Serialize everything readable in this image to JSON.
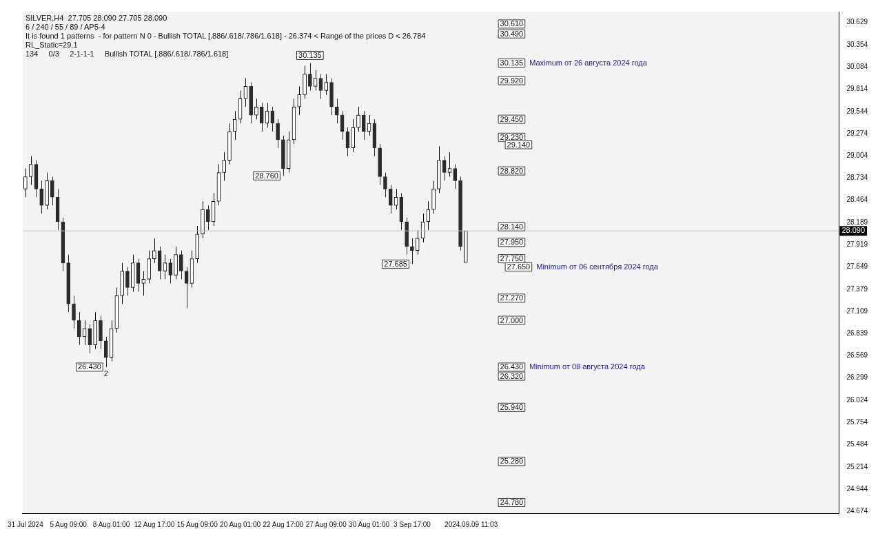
{
  "chart_data": {
    "type": "candlestick",
    "title": "SILVER,H4  27.705 28.090 27.705 28.090",
    "colors": [
      "#000000",
      "#000000",
      "#2b2b2b",
      "#2b2b2b",
      "#000000",
      "#2b2b2b",
      "#2b2b2b",
      "#2b2b2b",
      "#2b2b2b",
      "#2b2b2b",
      "#2b2b2b",
      "#000000",
      "#2b2b2b",
      "#000000",
      "#2b2b2b",
      "#2b2b2b",
      "#000000",
      "#000000",
      "#000000",
      "#2b2b2b",
      "#000000",
      "#2b2b2b",
      "#000000",
      "#000000",
      "#000000",
      "#2b2b2b",
      "#000000",
      "#2b2b2b",
      "#000000",
      "#2b2b2b",
      "#2b2b2b",
      "#000000",
      "#000000",
      "#000000",
      "#2b2b2b",
      "#000000",
      "#000000",
      "#000000",
      "#000000",
      "#000000",
      "#000000",
      "#000000",
      "#2b2b2b",
      "#000000",
      "#2b2b2b",
      "#000000",
      "#2b2b2b",
      "#2b2b2b",
      "#2b2b2b",
      "#000000",
      "#000000",
      "#000000",
      "#000000",
      "#2b2b2b",
      "#000000",
      "#2b2b2b",
      "#000000",
      "#2b2b2b",
      "#2b2b2b",
      "#2b2b2b",
      "#2b2b2b",
      "#000000",
      "#000000",
      "#2b2b2b",
      "#000000",
      "#2b2b2b",
      "#2b2b2b",
      "#2b2b2b",
      "#2b2b2b",
      "#000000",
      "#2b2b2b",
      "#2b2b2b",
      "#2b2b2b",
      "#000000",
      "#000000",
      "#000000",
      "#000000",
      "#000000",
      "#2b2b2b",
      "#000000",
      "#2b2b2b",
      "#2b2b2b",
      "#000000",
      null,
      null,
      null,
      null,
      null,
      null,
      null,
      null,
      null,
      null,
      null,
      null,
      null,
      null,
      null,
      null,
      null,
      null,
      null,
      null,
      null,
      null,
      null,
      null,
      null,
      null,
      null,
      null,
      null,
      null,
      null,
      null,
      null,
      null,
      null,
      null,
      null,
      null,
      null,
      null,
      null,
      null,
      null,
      null,
      null,
      null,
      null,
      null,
      null,
      null,
      null,
      null,
      null,
      null,
      null,
      null,
      null,
      null,
      null,
      null,
      null,
      null,
      null,
      null,
      null,
      null,
      null,
      null,
      null
    ],
    "categories": [
      "31 Jul 2024",
      null,
      null,
      null,
      null,
      null,
      null,
      null,
      "5 Aug 09:00",
      null,
      null,
      null,
      null,
      null,
      null,
      null,
      "8 Aug 01:00",
      null,
      null,
      null,
      null,
      null,
      null,
      null,
      "12 Aug 17:00",
      null,
      null,
      null,
      null,
      null,
      null,
      null,
      "15 Aug 09:00",
      null,
      null,
      null,
      null,
      null,
      null,
      null,
      "20 Aug 01:00",
      null,
      null,
      null,
      null,
      null,
      null,
      null,
      "22 Aug 17:00",
      null,
      null,
      null,
      null,
      null,
      null,
      null,
      "27 Aug 09:00",
      null,
      null,
      null,
      null,
      null,
      null,
      null,
      "30 Aug 01:00",
      null,
      null,
      null,
      null,
      null,
      null,
      null,
      "3 Sep 17:00",
      null,
      null,
      null,
      null,
      null,
      null,
      null,
      null,
      null,
      null,
      "2024.09.09 11:03",
      null,
      null,
      null,
      null,
      null,
      null,
      null,
      null,
      null,
      null,
      null,
      null,
      null,
      null,
      null,
      null,
      null,
      null,
      null,
      null,
      null,
      null,
      null,
      null,
      null,
      null,
      null,
      null,
      null,
      null,
      null,
      null,
      null,
      null,
      null,
      null,
      null,
      null,
      null,
      null,
      null,
      null,
      null,
      null,
      null,
      null,
      null,
      null,
      null,
      null,
      null,
      null,
      null,
      null,
      null,
      null,
      null,
      null,
      null,
      null,
      null,
      null,
      null,
      null,
      null,
      null,
      null,
      null
    ],
    "ohlc": [
      [
        28.6,
        28.85,
        28.5,
        28.75
      ],
      [
        28.75,
        29.0,
        28.65,
        28.9
      ],
      [
        28.9,
        28.95,
        28.5,
        28.6
      ],
      [
        28.6,
        28.7,
        28.3,
        28.4
      ],
      [
        28.4,
        28.8,
        28.35,
        28.7
      ],
      [
        28.7,
        28.75,
        28.4,
        28.5
      ],
      [
        28.5,
        28.6,
        28.1,
        28.2
      ],
      [
        28.2,
        28.25,
        27.6,
        27.7
      ],
      [
        27.7,
        27.8,
        27.1,
        27.2
      ],
      [
        27.2,
        27.3,
        26.9,
        27.0
      ],
      [
        27.0,
        27.1,
        26.7,
        26.8
      ],
      [
        26.8,
        27.0,
        26.7,
        26.9
      ],
      [
        26.9,
        26.95,
        26.6,
        26.7
      ],
      [
        26.7,
        27.1,
        26.65,
        27.0
      ],
      [
        27.0,
        27.05,
        26.65,
        26.75
      ],
      [
        26.75,
        26.8,
        26.43,
        26.55
      ],
      [
        26.55,
        27.0,
        26.5,
        26.9
      ],
      [
        26.9,
        27.4,
        26.85,
        27.3
      ],
      [
        27.3,
        27.7,
        27.2,
        27.6
      ],
      [
        27.6,
        27.65,
        27.3,
        27.4
      ],
      [
        27.4,
        27.8,
        27.35,
        27.7
      ],
      [
        27.7,
        27.75,
        27.35,
        27.45
      ],
      [
        27.45,
        27.6,
        27.3,
        27.5
      ],
      [
        27.5,
        27.85,
        27.45,
        27.75
      ],
      [
        27.75,
        28.0,
        27.7,
        27.85
      ],
      [
        27.85,
        27.9,
        27.5,
        27.6
      ],
      [
        27.6,
        27.8,
        27.5,
        27.7
      ],
      [
        27.7,
        27.75,
        27.45,
        27.55
      ],
      [
        27.55,
        27.9,
        27.5,
        27.8
      ],
      [
        27.8,
        27.85,
        27.5,
        27.6
      ],
      [
        27.6,
        27.65,
        27.15,
        27.45
      ],
      [
        27.45,
        27.85,
        27.4,
        27.75
      ],
      [
        27.75,
        28.15,
        27.7,
        28.05
      ],
      [
        28.05,
        28.45,
        28.0,
        28.35
      ],
      [
        28.35,
        28.4,
        28.1,
        28.2
      ],
      [
        28.2,
        28.55,
        28.15,
        28.45
      ],
      [
        28.45,
        28.9,
        28.4,
        28.8
      ],
      [
        28.8,
        29.05,
        28.7,
        28.95
      ],
      [
        28.95,
        29.4,
        28.9,
        29.3
      ],
      [
        29.3,
        29.55,
        29.2,
        29.45
      ],
      [
        29.45,
        29.8,
        29.4,
        29.7
      ],
      [
        29.7,
        29.95,
        29.6,
        29.85
      ],
      [
        29.85,
        29.9,
        29.4,
        29.5
      ],
      [
        29.5,
        29.7,
        29.45,
        29.6
      ],
      [
        29.6,
        29.65,
        29.3,
        29.4
      ],
      [
        29.4,
        29.65,
        29.35,
        29.55
      ],
      [
        29.55,
        29.6,
        29.3,
        29.4
      ],
      [
        29.4,
        29.45,
        29.1,
        29.2
      ],
      [
        29.2,
        29.25,
        28.76,
        28.85
      ],
      [
        28.85,
        29.3,
        28.8,
        29.2
      ],
      [
        29.2,
        29.7,
        29.15,
        29.6
      ],
      [
        29.6,
        29.85,
        29.5,
        29.75
      ],
      [
        29.75,
        30.1,
        29.7,
        30.0
      ],
      [
        30.0,
        30.135,
        29.8,
        29.85
      ],
      [
        29.85,
        30.05,
        29.8,
        29.95
      ],
      [
        29.95,
        30.0,
        29.7,
        29.8
      ],
      [
        29.8,
        30.0,
        29.75,
        29.9
      ],
      [
        29.9,
        29.95,
        29.5,
        29.6
      ],
      [
        29.6,
        29.7,
        29.4,
        29.5
      ],
      [
        29.5,
        29.55,
        29.2,
        29.3
      ],
      [
        29.3,
        29.35,
        29.0,
        29.1
      ],
      [
        29.1,
        29.45,
        29.05,
        29.35
      ],
      [
        29.35,
        29.6,
        29.3,
        29.5
      ],
      [
        29.5,
        29.55,
        29.2,
        29.3
      ],
      [
        29.3,
        29.5,
        29.25,
        29.4
      ],
      [
        29.4,
        29.45,
        29.0,
        29.1
      ],
      [
        29.1,
        29.15,
        28.65,
        28.75
      ],
      [
        28.75,
        28.8,
        28.5,
        28.6
      ],
      [
        28.6,
        28.65,
        28.3,
        28.4
      ],
      [
        28.4,
        28.6,
        28.35,
        28.5
      ],
      [
        28.5,
        28.55,
        28.1,
        28.2
      ],
      [
        28.2,
        28.25,
        27.8,
        27.9
      ],
      [
        27.9,
        28.0,
        27.685,
        27.85
      ],
      [
        27.85,
        28.1,
        27.8,
        28.0
      ],
      [
        28.0,
        28.3,
        27.95,
        28.2
      ],
      [
        28.2,
        28.45,
        28.1,
        28.35
      ],
      [
        28.35,
        28.7,
        28.3,
        28.6
      ],
      [
        28.6,
        29.12,
        28.55,
        28.95
      ],
      [
        28.95,
        29.0,
        28.7,
        28.8
      ],
      [
        28.8,
        29.05,
        28.75,
        28.85
      ],
      [
        28.85,
        28.9,
        28.6,
        28.7
      ],
      [
        28.7,
        28.75,
        27.85,
        27.9
      ],
      [
        27.705,
        28.09,
        27.705,
        28.09
      ],
      null,
      null,
      null,
      null,
      null,
      null,
      null,
      null,
      null,
      null,
      null,
      null,
      null,
      null,
      null,
      null,
      null,
      null,
      null,
      null,
      null,
      null,
      null,
      null,
      null,
      null,
      null,
      null,
      null,
      null,
      null,
      null,
      null,
      null,
      null,
      null,
      null,
      null,
      null,
      null,
      null,
      null,
      null,
      null,
      null,
      null,
      null,
      null,
      null,
      null,
      null,
      null,
      null,
      null,
      null,
      null,
      null,
      null,
      null,
      null,
      null,
      null,
      null,
      null,
      null,
      null,
      null,
      null,
      null
    ],
    "ylim": [
      24.65,
      30.76
    ],
    "yticks": [
      24.674,
      24.944,
      25.214,
      25.484,
      25.754,
      26.024,
      26.299,
      26.569,
      26.839,
      27.109,
      27.379,
      27.649,
      27.919,
      28.189,
      28.464,
      28.734,
      29.004,
      29.274,
      29.544,
      29.814,
      30.084,
      30.354,
      30.629
    ],
    "ref_lines": [
      {
        "axis": "y",
        "value": 28.09,
        "label": "28.090",
        "color": "#c0c0c0"
      }
    ],
    "annotations": [
      "6 / 240 / 55 / 89 / AP5-4",
      "It is found 1 patterns  - for pattern N 0 - Bullish TOTAL [.886/.618/.786/1.618] - 26.374 < Range of the prices D < 26.784",
      "RL_Static=29.1",
      "134     0/3     2-1-1-1     Bullish TOTAL [.886/.618/.786/1.618]",
      {
        "text": "26.430",
        "y": 26.43
      },
      {
        "text": "2",
        "y": 26.43
      },
      {
        "text": "28.760",
        "y": 28.76
      },
      {
        "text": "30.135",
        "y": 30.135
      },
      {
        "text": "27.685",
        "y": 27.685
      },
      {
        "text": "30.610",
        "y": 30.61
      },
      {
        "text": "30.490",
        "y": 30.49
      },
      {
        "text": "30.135",
        "y": 30.135
      },
      "Maximum от 26 августа 2024 года",
      {
        "text": "29.920",
        "y": 29.92
      },
      {
        "text": "29.450",
        "y": 29.45
      },
      {
        "text": "29.230",
        "y": 29.23
      },
      {
        "text": "29.140",
        "y": 29.14
      },
      {
        "text": "28.820",
        "y": 28.82
      },
      {
        "text": "28.140",
        "y": 28.14
      },
      {
        "text": "27.950",
        "y": 27.95
      },
      {
        "text": "27.750",
        "y": 27.75
      },
      {
        "text": "27.650",
        "y": 27.65
      },
      "Minimum от 06 сентября 2024 года",
      {
        "text": "27.270",
        "y": 27.27
      },
      {
        "text": "27.000",
        "y": 27.0
      },
      {
        "text": "26.430",
        "y": 26.43
      },
      "Minimum от 08 августа 2024 года",
      {
        "text": "26.320",
        "y": 26.32
      },
      {
        "text": "25.940",
        "y": 25.94
      },
      {
        "text": "25.280",
        "y": 25.28
      },
      {
        "text": "24.780",
        "y": 24.78
      }
    ]
  }
}
